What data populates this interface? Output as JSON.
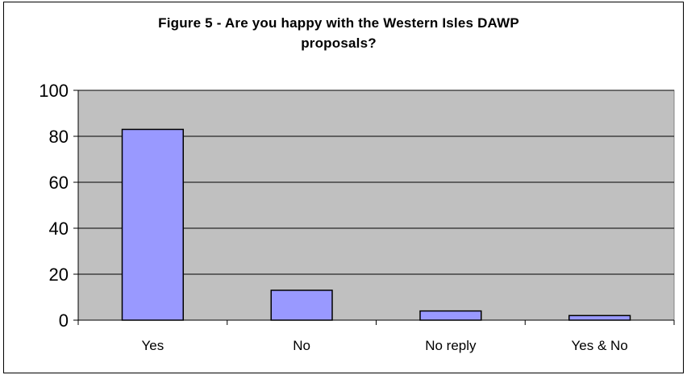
{
  "chart_data": {
    "type": "bar",
    "title": "Figure 5 - Are you happy with the Western Isles DAWP\nproposals?",
    "categories": [
      "Yes",
      "No",
      "No reply",
      "Yes & No"
    ],
    "values": [
      83,
      13,
      4,
      2
    ],
    "xlabel": "",
    "ylabel": "",
    "ylim": [
      0,
      100
    ],
    "yticks": [
      "0",
      "20",
      "40",
      "60",
      "80",
      "100"
    ],
    "grid": true,
    "legend": "none",
    "colors": {
      "bar_fill": "#9999ff",
      "bar_stroke": "#000000",
      "plot_background": "#c0c0c0",
      "gridline": "#000000"
    }
  }
}
